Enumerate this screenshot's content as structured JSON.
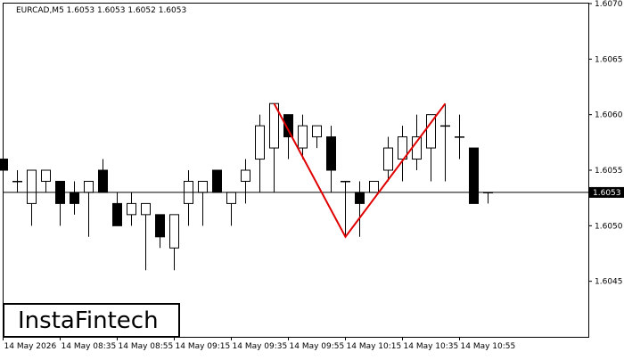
{
  "chart_data": {
    "type": "candlestick",
    "title": "EURCAD,M5  1.6053 1.6053 1.6052 1.6053",
    "logo": "InstaFintech",
    "categories": [
      "14 May 2026",
      null,
      null,
      null,
      "14 May 08:35",
      null,
      null,
      null,
      "14 May 08:55",
      null,
      null,
      null,
      "14 May 09:15",
      null,
      null,
      null,
      "14 May 09:35",
      null,
      null,
      null,
      "14 May 09:55",
      null,
      null,
      null,
      "14 May 10:15",
      null,
      null,
      null,
      "14 May 10:35",
      null,
      null,
      null,
      "14 May 10:55",
      null,
      null
    ],
    "open": [
      1.6056,
      1.6054,
      1.6052,
      1.6054,
      1.6054,
      1.6053,
      1.6053,
      1.6055,
      1.6052,
      1.6051,
      1.6051,
      1.6051,
      1.6048,
      1.6052,
      1.6053,
      1.6055,
      1.6052,
      1.6054,
      1.6056,
      1.6057,
      1.606,
      1.6057,
      1.6058,
      1.6058,
      1.6054,
      1.6053,
      1.6053,
      1.6055,
      1.6056,
      1.6056,
      1.6057,
      1.6059,
      1.6058,
      1.6057,
      1.6053
    ],
    "high": [
      1.6056,
      1.6055,
      1.6055,
      1.6055,
      1.6054,
      1.6054,
      1.6054,
      1.6056,
      1.6053,
      1.6053,
      1.6052,
      1.6051,
      1.6051,
      1.6055,
      1.6054,
      1.6055,
      1.6053,
      1.6056,
      1.606,
      1.6061,
      1.606,
      1.606,
      1.6059,
      1.6059,
      1.6054,
      1.6054,
      1.6054,
      1.6058,
      1.6059,
      1.606,
      1.606,
      1.6061,
      1.606,
      1.6057,
      1.6053
    ],
    "low": [
      1.605,
      1.6053,
      1.605,
      1.6053,
      1.605,
      1.6051,
      1.6049,
      1.6053,
      1.605,
      1.605,
      1.6046,
      1.6048,
      1.6046,
      1.605,
      1.605,
      1.6053,
      1.605,
      1.6052,
      1.6053,
      1.6053,
      1.6056,
      1.6056,
      1.6057,
      1.6053,
      1.6049,
      1.6049,
      1.6053,
      1.6054,
      1.6054,
      1.6055,
      1.6054,
      1.6054,
      1.6056,
      1.6052,
      1.6052
    ],
    "close": [
      1.6055,
      1.6054,
      1.6055,
      1.6055,
      1.6052,
      1.6052,
      1.6054,
      1.6053,
      1.605,
      1.6052,
      1.6052,
      1.6049,
      1.6051,
      1.6054,
      1.6054,
      1.6053,
      1.6053,
      1.6055,
      1.6059,
      1.6061,
      1.6058,
      1.6059,
      1.6059,
      1.6055,
      1.6054,
      1.6052,
      1.6054,
      1.6057,
      1.6058,
      1.6058,
      1.606,
      1.6059,
      1.6058,
      1.6052,
      1.6053
    ],
    "ylim": [
      1.604,
      1.607
    ],
    "yticks": [
      {
        "value": 1.6045,
        "label": "1.6045"
      },
      {
        "value": 1.605,
        "label": "1.6050"
      },
      {
        "value": 1.6055,
        "label": "1.6055"
      },
      {
        "value": 1.606,
        "label": "1.6060"
      },
      {
        "value": 1.6065,
        "label": "1.6065"
      },
      {
        "value": 1.607,
        "label": "1.6070"
      }
    ],
    "last_price": {
      "value": 1.6053,
      "label": "1.6053"
    },
    "pattern": {
      "color": "#e00000",
      "index": [
        19,
        24,
        31
      ],
      "values": [
        1.6061,
        1.6049,
        1.6061
      ]
    }
  }
}
